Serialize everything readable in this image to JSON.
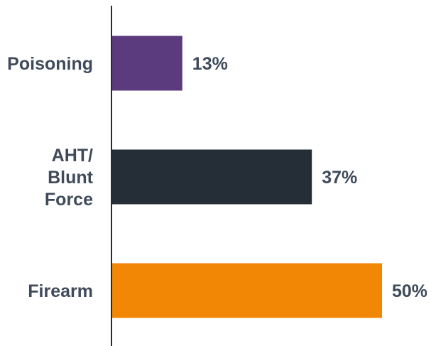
{
  "chart_data": {
    "type": "bar",
    "orientation": "horizontal",
    "categories": [
      "Poisoning",
      "AHT/\nBlunt\nForce",
      "Firearm"
    ],
    "values": [
      13,
      37,
      50
    ],
    "value_labels": [
      "13%",
      "37%",
      "50%"
    ],
    "colors": [
      "#5b3a7e",
      "#252d37",
      "#f28705"
    ],
    "xlim": [
      0,
      50
    ],
    "grid": false,
    "legend": "none",
    "title": "",
    "xlabel": "",
    "ylabel": ""
  }
}
